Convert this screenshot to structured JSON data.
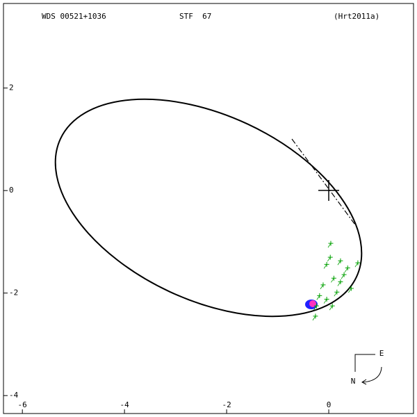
{
  "chart_data": {
    "type": "scatter",
    "title": "WDS 00521+1036",
    "subtitle": "STF  67",
    "reference": "(Hrt2011a)",
    "annotations": {
      "east": "E",
      "north": "N"
    },
    "xlim": [
      -6.37,
      1.66
    ],
    "ylim": [
      -4.35,
      3.65
    ],
    "xticks": [
      -6,
      -4,
      -2,
      0
    ],
    "yticks": [
      2,
      0,
      -2,
      -4
    ],
    "series": [
      {
        "color": "#00a000",
        "x": [
          0.04,
          -0.04,
          0.23,
          0.57,
          0.3,
          0.1,
          0.44,
          -0.11,
          -0.04,
          -0.24,
          0.16,
          0.23,
          0.03,
          0.37,
          -0.18,
          0.07,
          -0.26
        ],
        "values": [
          -1.03,
          -1.44,
          -1.37,
          -1.41,
          -1.64,
          -1.71,
          -1.91,
          -1.84,
          -2.12,
          -2.25,
          -1.98,
          -1.78,
          -1.3,
          -1.51,
          -2.05,
          -2.25,
          -2.45
        ]
      }
    ]
  }
}
